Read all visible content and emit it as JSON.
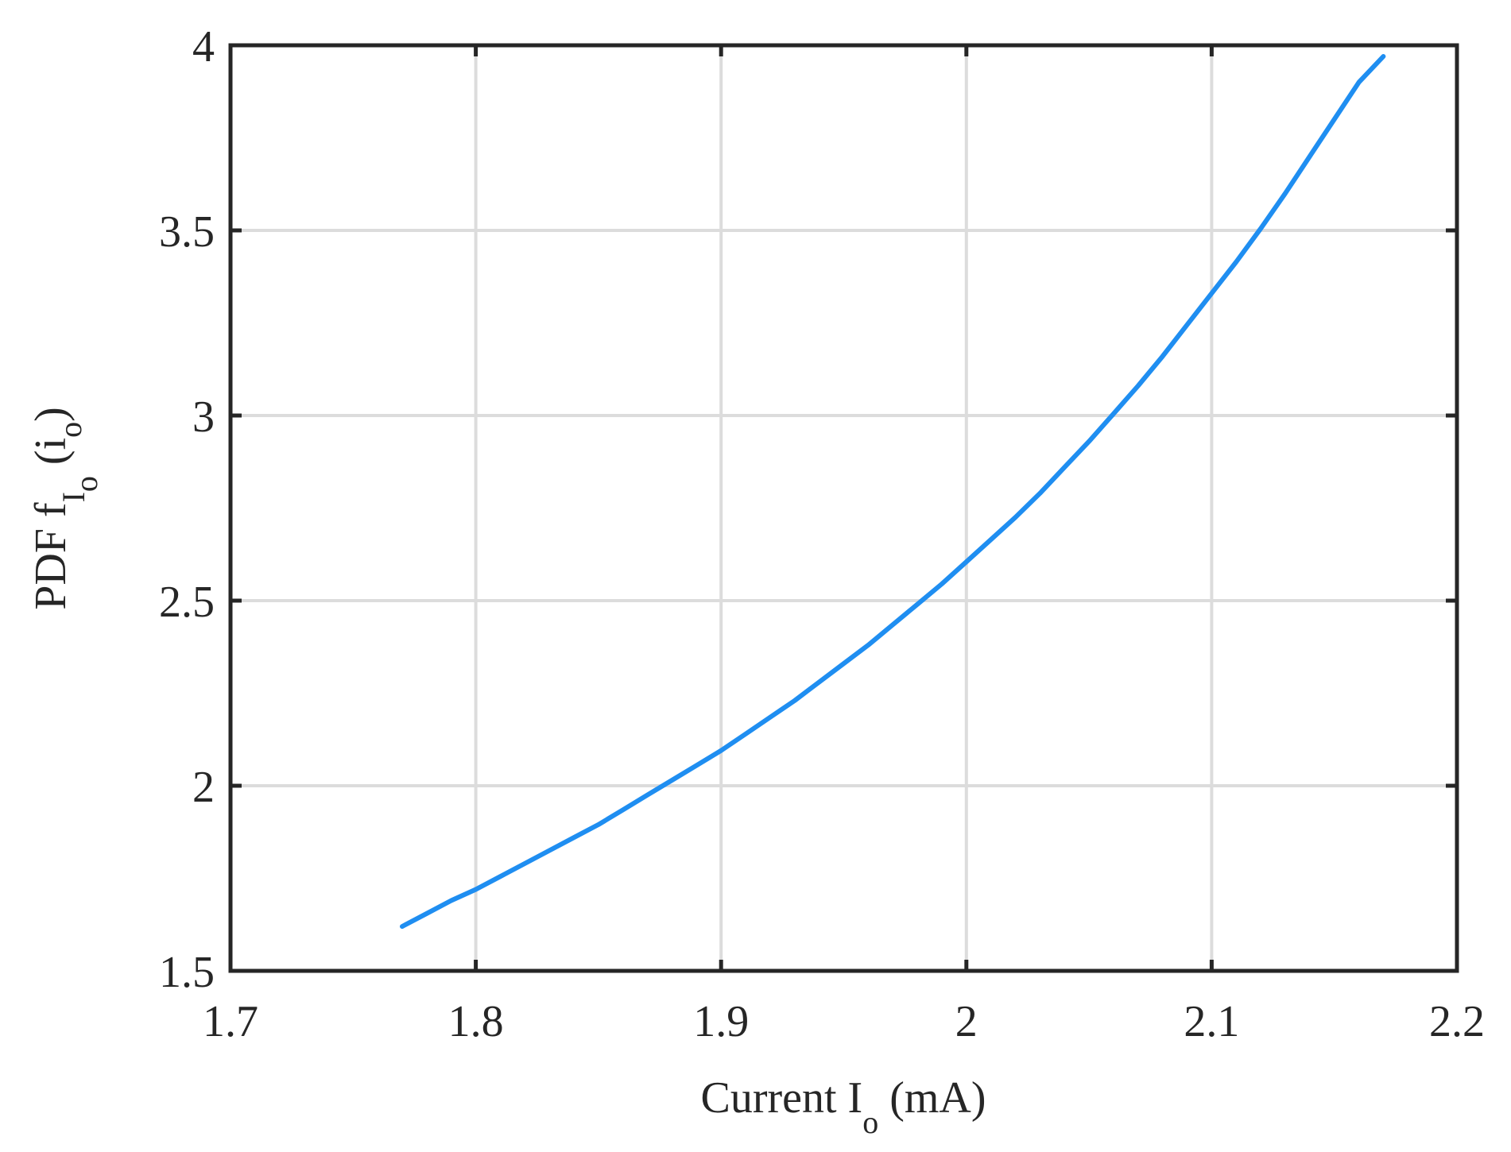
{
  "chart_data": {
    "type": "line",
    "title": "",
    "xlabel": {
      "main": "Current I",
      "sub": "o",
      "suffix": " (mA)"
    },
    "ylabel": {
      "main": "PDF f",
      "sub": "I",
      "subsub": "o",
      "suffix_open": " (i",
      "suffix_sub": "o",
      "suffix_close": ")"
    },
    "xlim": [
      1.7,
      2.2
    ],
    "ylim": [
      1.5,
      4
    ],
    "xticks": [
      1.7,
      1.8,
      1.9,
      2.0,
      2.1,
      2.2
    ],
    "xtick_labels": [
      "1.7",
      "1.8",
      "1.9",
      "2",
      "2.1",
      "2.2"
    ],
    "yticks": [
      1.5,
      2.0,
      2.5,
      3.0,
      3.5,
      4.0
    ],
    "ytick_labels": [
      "1.5",
      "2",
      "2.5",
      "3",
      "3.5",
      "4"
    ],
    "grid": true,
    "series": [
      {
        "color": "#1f8ef1",
        "x": [
          1.77,
          1.78,
          1.79,
          1.8,
          1.81,
          1.82,
          1.83,
          1.84,
          1.85,
          1.86,
          1.87,
          1.88,
          1.89,
          1.9,
          1.91,
          1.92,
          1.93,
          1.94,
          1.95,
          1.96,
          1.97,
          1.98,
          1.99,
          2.0,
          2.01,
          2.02,
          2.03,
          2.04,
          2.05,
          2.06,
          2.07,
          2.08,
          2.09,
          2.1,
          2.11,
          2.12,
          2.13,
          2.14,
          2.15,
          2.16,
          2.17
        ],
        "y": [
          1.62,
          1.655,
          1.69,
          1.72,
          1.755,
          1.79,
          1.825,
          1.86,
          1.895,
          1.935,
          1.975,
          2.015,
          2.055,
          2.095,
          2.14,
          2.185,
          2.23,
          2.28,
          2.33,
          2.38,
          2.435,
          2.49,
          2.545,
          2.605,
          2.665,
          2.725,
          2.79,
          2.86,
          2.93,
          3.005,
          3.08,
          3.16,
          3.245,
          3.33,
          3.415,
          3.505,
          3.6,
          3.7,
          3.8,
          3.9,
          3.97
        ]
      }
    ]
  }
}
